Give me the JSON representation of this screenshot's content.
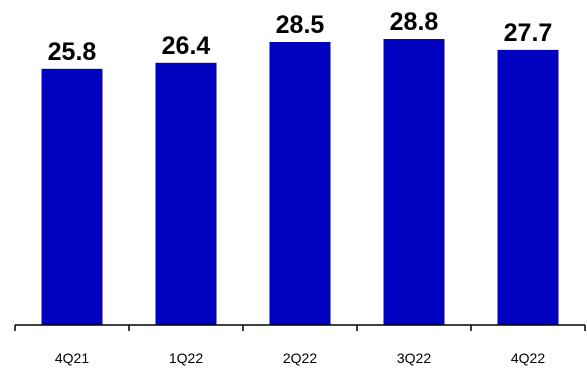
{
  "chart_data": {
    "type": "bar",
    "title": "",
    "xlabel": "",
    "ylabel": "",
    "categories": [
      "4Q21",
      "1Q22",
      "2Q22",
      "3Q22",
      "4Q22"
    ],
    "values": [
      25.8,
      26.4,
      28.5,
      28.8,
      27.7
    ],
    "data_labels": [
      "25.8",
      "26.4",
      "28.5",
      "28.8",
      "27.7"
    ],
    "ylim": [
      0,
      28.8
    ],
    "grid": false,
    "legend": "none",
    "colors": {
      "bar": "#0000BF",
      "axis": "#000000",
      "text": "#000000"
    }
  }
}
